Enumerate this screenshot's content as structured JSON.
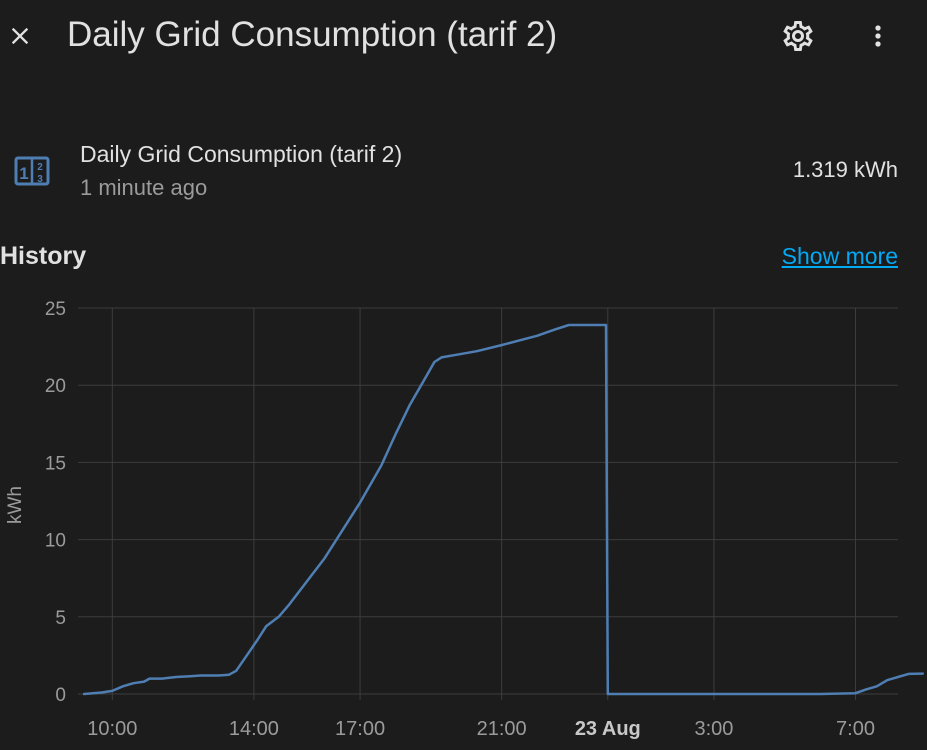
{
  "header": {
    "title": "Daily Grid Consumption (tarif 2)",
    "close_icon": "close-icon",
    "settings_icon": "gear-icon",
    "more_icon": "more-vertical-icon"
  },
  "entity": {
    "icon": "counter-icon",
    "name": "Daily Grid Consumption (tarif 2)",
    "last_changed": "1 minute ago",
    "state": "1.319 kWh"
  },
  "history": {
    "title": "History",
    "show_more": "Show more"
  },
  "colors": {
    "background": "#1c1c1c",
    "accent": "#03a9f4",
    "line": "#4f7eb3",
    "icon": "#4f7eb3"
  },
  "chart_data": {
    "type": "line",
    "ylabel": "kWh",
    "ylim": [
      0,
      25
    ],
    "yticks": [
      "0",
      "5",
      "10",
      "15",
      "20",
      "25"
    ],
    "xlim": [
      9.2,
      32.2
    ],
    "xticks": [
      {
        "hour": 10,
        "label": "10:00",
        "bold": false
      },
      {
        "hour": 14,
        "label": "14:00",
        "bold": false
      },
      {
        "hour": 17,
        "label": "17:00",
        "bold": false
      },
      {
        "hour": 21,
        "label": "21:00",
        "bold": false
      },
      {
        "hour": 24,
        "label": "23 Aug",
        "bold": true
      },
      {
        "hour": 27,
        "label": "3:00",
        "bold": false
      },
      {
        "hour": 31,
        "label": "7:00",
        "bold": false
      }
    ],
    "grid": true,
    "series": [
      {
        "name": "",
        "points": [
          [
            9.2,
            0.0
          ],
          [
            9.7,
            0.1
          ],
          [
            10.0,
            0.2
          ],
          [
            10.3,
            0.5
          ],
          [
            10.6,
            0.7
          ],
          [
            10.9,
            0.8
          ],
          [
            11.05,
            1.0
          ],
          [
            11.4,
            1.0
          ],
          [
            11.8,
            1.1
          ],
          [
            12.2,
            1.15
          ],
          [
            12.5,
            1.2
          ],
          [
            13.0,
            1.2
          ],
          [
            13.3,
            1.25
          ],
          [
            13.5,
            1.5
          ],
          [
            13.8,
            2.5
          ],
          [
            14.1,
            3.5
          ],
          [
            14.35,
            4.4
          ],
          [
            14.7,
            5.0
          ],
          [
            15.0,
            5.8
          ],
          [
            15.5,
            7.3
          ],
          [
            16.0,
            8.8
          ],
          [
            16.5,
            10.6
          ],
          [
            17.0,
            12.4
          ],
          [
            17.3,
            13.6
          ],
          [
            17.6,
            14.8
          ],
          [
            18.0,
            16.8
          ],
          [
            18.4,
            18.7
          ],
          [
            18.8,
            20.3
          ],
          [
            19.1,
            21.5
          ],
          [
            19.3,
            21.8
          ],
          [
            19.8,
            22.0
          ],
          [
            20.3,
            22.2
          ],
          [
            21.0,
            22.6
          ],
          [
            21.5,
            22.9
          ],
          [
            22.0,
            23.2
          ],
          [
            22.5,
            23.6
          ],
          [
            22.9,
            23.9
          ],
          [
            23.95,
            23.9
          ],
          [
            24.0,
            0.0
          ],
          [
            30.0,
            0.0
          ],
          [
            31.0,
            0.05
          ],
          [
            31.3,
            0.3
          ],
          [
            31.6,
            0.5
          ],
          [
            31.9,
            0.9
          ],
          [
            32.2,
            1.1
          ],
          [
            32.5,
            1.3
          ],
          [
            32.9,
            1.32
          ]
        ]
      }
    ]
  }
}
